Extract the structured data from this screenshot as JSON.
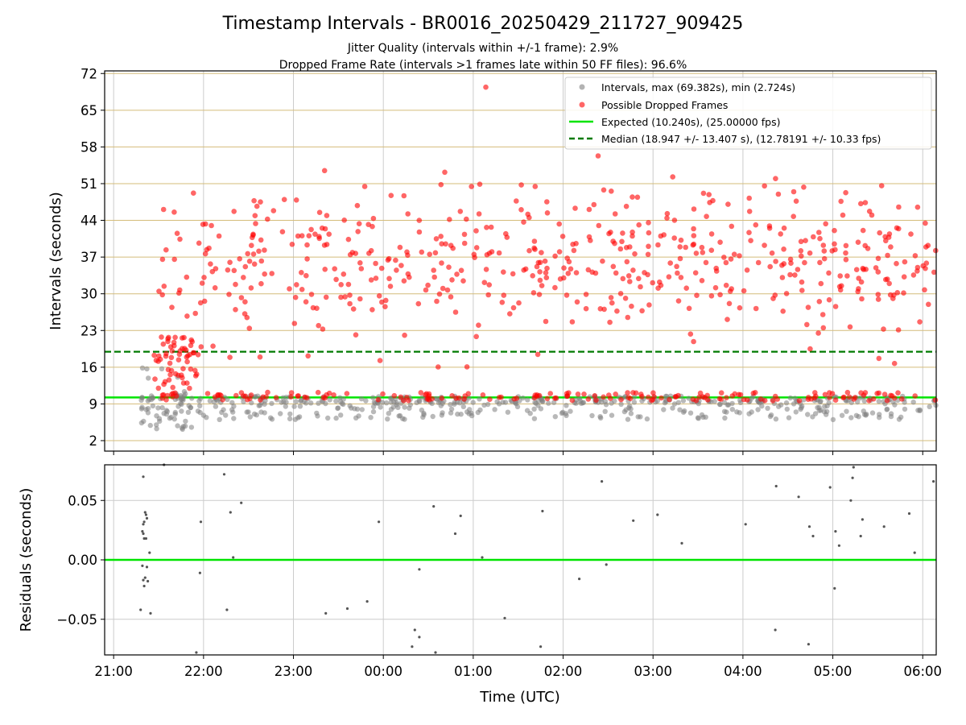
{
  "title": "Timestamp Intervals - BR0016_20250429_211727_909425",
  "subtitle_1": "Jitter Quality (intervals within +/-1 frame): 2.9%",
  "subtitle_2": "Dropped Frame Rate (intervals >1 frames late within 50 FF files): 96.6%",
  "colors": {
    "intervals": "#808080",
    "dropped": "#ff0000",
    "expected": "#00e400",
    "median": "#007a00",
    "hgrid": "#d4bc7a",
    "vgrid": "#cccccc",
    "residual_points": "#555555"
  },
  "chart_data": [
    {
      "type": "scatter",
      "ylabel": "Intervals (seconds)",
      "x_unit": "hours after 21:00 UTC",
      "xlim": [
        -0.1,
        9.15
      ],
      "ylim": [
        0.0,
        72.5
      ],
      "yticks": [
        2,
        9,
        16,
        23,
        30,
        37,
        44,
        51,
        58,
        65,
        72
      ],
      "hgrid": true,
      "vgrid": true,
      "legend_position": "top-right",
      "legend": [
        "Intervals, max (69.382s), min (2.724s)",
        "Possible Dropped Frames",
        "Expected (10.240s), (25.00000 fps)",
        "Median (18.947 +/- 13.407 s), (12.78191 +/- 10.33 fps)"
      ],
      "expected_value": 10.24,
      "median_value": 18.947,
      "time_range_hours": [
        0.3,
        9.15
      ],
      "series_estimates": {
        "intervals": {
          "y_min": 2.724,
          "y_max": 69.382,
          "typical_range": [
            6,
            10.5
          ]
        },
        "dropped": {
          "y_range": [
            10,
            69.4
          ],
          "typical_range": [
            20,
            50
          ]
        }
      }
    },
    {
      "type": "scatter",
      "xlabel": "Time (UTC)",
      "ylabel": "Residuals (seconds)",
      "xlim": [
        -0.1,
        9.15
      ],
      "ylim": [
        -0.08,
        0.08
      ],
      "yticks": [
        -0.05,
        0.0,
        0.05
      ],
      "ytick_labels": [
        "−0.05",
        "0.00",
        "0.05"
      ],
      "xticks": [
        0,
        1,
        2,
        3,
        4,
        5,
        6,
        7,
        8,
        9
      ],
      "xtick_labels": [
        "21:00",
        "22:00",
        "23:00",
        "00:00",
        "01:00",
        "02:00",
        "03:00",
        "04:00",
        "05:00",
        "06:00"
      ],
      "grid": true,
      "reference_line": 0.0,
      "points": [
        [
          0.33,
          0.07
        ],
        [
          0.35,
          0.04
        ],
        [
          0.36,
          0.038
        ],
        [
          0.34,
          0.032
        ],
        [
          0.37,
          0.035
        ],
        [
          0.33,
          0.03
        ],
        [
          0.32,
          0.024
        ],
        [
          0.34,
          0.018
        ],
        [
          0.36,
          0.018
        ],
        [
          0.33,
          0.022
        ],
        [
          0.4,
          0.006
        ],
        [
          0.32,
          -0.005
        ],
        [
          0.33,
          -0.017
        ],
        [
          0.35,
          -0.015
        ],
        [
          0.34,
          -0.022
        ],
        [
          0.37,
          -0.006
        ],
        [
          0.38,
          -0.018
        ],
        [
          0.41,
          -0.045
        ],
        [
          0.3,
          -0.042
        ],
        [
          0.56,
          0.08
        ],
        [
          0.92,
          -0.078
        ],
        [
          0.97,
          0.032
        ],
        [
          0.96,
          -0.011
        ],
        [
          1.23,
          0.072
        ],
        [
          1.3,
          0.04
        ],
        [
          1.33,
          0.002
        ],
        [
          1.42,
          0.048
        ],
        [
          1.26,
          -0.042
        ],
        [
          2.36,
          -0.045
        ],
        [
          2.6,
          -0.041
        ],
        [
          2.82,
          -0.035
        ],
        [
          2.95,
          0.032
        ],
        [
          3.32,
          -0.073
        ],
        [
          3.35,
          -0.059
        ],
        [
          3.4,
          -0.065
        ],
        [
          3.4,
          -0.008
        ],
        [
          3.58,
          -0.078
        ],
        [
          3.56,
          0.045
        ],
        [
          3.8,
          0.022
        ],
        [
          3.86,
          0.037
        ],
        [
          4.1,
          0.002
        ],
        [
          4.35,
          -0.049
        ],
        [
          4.77,
          0.041
        ],
        [
          4.75,
          -0.073
        ],
        [
          5.18,
          -0.016
        ],
        [
          5.43,
          0.066
        ],
        [
          5.48,
          -0.004
        ],
        [
          5.78,
          0.033
        ],
        [
          6.05,
          0.038
        ],
        [
          6.32,
          0.014
        ],
        [
          7.03,
          0.03
        ],
        [
          7.37,
          0.062
        ],
        [
          7.36,
          -0.059
        ],
        [
          7.62,
          0.053
        ],
        [
          7.74,
          0.028
        ],
        [
          7.78,
          0.02
        ],
        [
          7.73,
          -0.071
        ],
        [
          7.97,
          0.061
        ],
        [
          8.03,
          0.024
        ],
        [
          8.07,
          0.012
        ],
        [
          8.02,
          -0.024
        ],
        [
          8.23,
          0.078
        ],
        [
          8.22,
          0.069
        ],
        [
          8.2,
          0.05
        ],
        [
          8.31,
          0.02
        ],
        [
          8.33,
          0.034
        ],
        [
          8.57,
          0.028
        ],
        [
          8.85,
          0.039
        ],
        [
          8.91,
          0.006
        ],
        [
          9.12,
          0.066
        ]
      ]
    }
  ]
}
